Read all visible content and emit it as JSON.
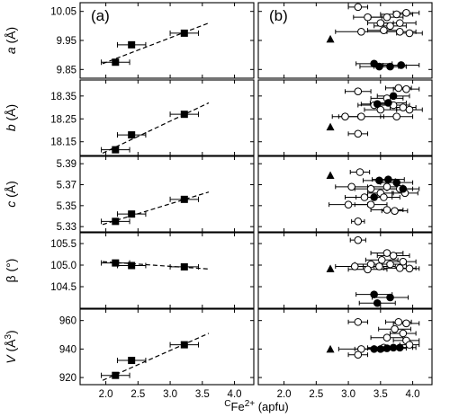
{
  "chart_data": {
    "type": "scatter",
    "panel_labels": [
      "(a)",
      "(b)"
    ],
    "xlabel": {
      "sup": "C",
      "main": "Fe",
      "charge": "2+",
      "unit": " (apfu)"
    },
    "xlim": [
      1.6,
      4.3
    ],
    "xticks": [
      2.0,
      2.5,
      3.0,
      3.5,
      4.0
    ],
    "xtick_labels": [
      "2.0",
      "2.5",
      "3.0",
      "3.5",
      "4.0"
    ],
    "rows": [
      {
        "key": "a",
        "ylabel": {
          "main": "a",
          "unit": " (Å)",
          "italic": true
        },
        "ylim": [
          9.82,
          10.08
        ],
        "yticks": [
          9.85,
          9.95,
          10.05
        ],
        "ytick_labels": [
          "9.85",
          "9.95",
          "10.05"
        ],
        "series_a": [
          {
            "x": 2.15,
            "y": 9.875,
            "xerr": 0.22
          },
          {
            "x": 2.4,
            "y": 9.935,
            "xerr": 0.22
          },
          {
            "x": 3.22,
            "y": 9.975,
            "xerr": 0.22
          }
        ],
        "trend_a": [
          [
            1.95,
            9.87
          ],
          [
            3.6,
            10.01
          ]
        ],
        "open_b": [
          {
            "x": 3.15,
            "y": 10.065,
            "xerr": 0.15
          },
          {
            "x": 3.3,
            "y": 10.03,
            "xerr": 0.22
          },
          {
            "x": 3.6,
            "y": 10.03,
            "xerr": 0.25
          },
          {
            "x": 3.75,
            "y": 10.04,
            "xerr": 0.25
          },
          {
            "x": 3.9,
            "y": 10.045,
            "xerr": 0.2
          },
          {
            "x": 3.8,
            "y": 10.01,
            "xerr": 0.25
          },
          {
            "x": 3.65,
            "y": 10.0,
            "xerr": 0.25
          },
          {
            "x": 3.5,
            "y": 10.01,
            "xerr": 0.2
          },
          {
            "x": 3.2,
            "y": 9.98,
            "xerr": 0.4
          },
          {
            "x": 3.55,
            "y": 9.985,
            "xerr": 0.25
          },
          {
            "x": 3.8,
            "y": 9.98,
            "xerr": 0.25
          },
          {
            "x": 3.95,
            "y": 9.975,
            "xerr": 0.2
          }
        ],
        "filled_b": [
          {
            "x": 3.4,
            "y": 9.87,
            "xerr": 0.28
          },
          {
            "x": 3.48,
            "y": 9.86,
            "xerr": 0.3
          },
          {
            "x": 3.65,
            "y": 9.86,
            "xerr": 0.25
          },
          {
            "x": 3.82,
            "y": 9.865,
            "xerr": 0.28
          }
        ],
        "triangle_b": [
          {
            "x": 2.72,
            "y": 9.955
          }
        ]
      },
      {
        "key": "b",
        "ylabel": {
          "main": "b",
          "unit": " (Å)",
          "italic": true
        },
        "ylim": [
          18.09,
          18.42
        ],
        "yticks": [
          18.15,
          18.25,
          18.35
        ],
        "ytick_labels": [
          "18.15",
          "18.25",
          "18.35"
        ],
        "series_a": [
          {
            "x": 2.15,
            "y": 18.115,
            "xerr": 0.22
          },
          {
            "x": 2.4,
            "y": 18.18,
            "xerr": 0.22
          },
          {
            "x": 3.22,
            "y": 18.27,
            "xerr": 0.22
          }
        ],
        "trend_a": [
          [
            1.95,
            18.1
          ],
          [
            3.6,
            18.32
          ]
        ],
        "open_b": [
          {
            "x": 3.15,
            "y": 18.37,
            "xerr": 0.2
          },
          {
            "x": 3.78,
            "y": 18.385,
            "xerr": 0.2
          },
          {
            "x": 3.9,
            "y": 18.38,
            "xerr": 0.2
          },
          {
            "x": 3.6,
            "y": 18.34,
            "xerr": 0.25
          },
          {
            "x": 3.4,
            "y": 18.31,
            "xerr": 0.25
          },
          {
            "x": 3.7,
            "y": 18.31,
            "xerr": 0.25
          },
          {
            "x": 3.85,
            "y": 18.3,
            "xerr": 0.2
          },
          {
            "x": 3.5,
            "y": 18.29,
            "xerr": 0.25
          },
          {
            "x": 3.95,
            "y": 18.29,
            "xerr": 0.2
          },
          {
            "x": 2.95,
            "y": 18.26,
            "xerr": 0.2
          },
          {
            "x": 3.2,
            "y": 18.26,
            "xerr": 0.35
          },
          {
            "x": 3.75,
            "y": 18.26,
            "xerr": 0.25
          },
          {
            "x": 3.15,
            "y": 18.185,
            "xerr": 0.15
          }
        ],
        "filled_b": [
          {
            "x": 3.45,
            "y": 18.315,
            "xerr": 0.25
          },
          {
            "x": 3.7,
            "y": 18.35,
            "xerr": 0.25
          },
          {
            "x": 3.62,
            "y": 18.32,
            "xerr": 0.28
          }
        ],
        "triangle_b": [
          {
            "x": 2.72,
            "y": 18.215
          }
        ]
      },
      {
        "key": "c",
        "ylabel": {
          "main": "c",
          "unit": " (Å)",
          "italic": true
        },
        "ylim": [
          5.325,
          5.397
        ],
        "yticks": [
          5.33,
          5.35,
          5.37,
          5.39
        ],
        "ytick_labels": [
          "5.33",
          "5.35",
          "5.37",
          "5.39"
        ],
        "series_a": [
          {
            "x": 2.15,
            "y": 5.335,
            "xerr": 0.22
          },
          {
            "x": 2.4,
            "y": 5.342,
            "xerr": 0.22
          },
          {
            "x": 3.22,
            "y": 5.356,
            "xerr": 0.22
          }
        ],
        "trend_a": [
          [
            1.95,
            5.332
          ],
          [
            3.6,
            5.363
          ]
        ],
        "open_b": [
          {
            "x": 3.18,
            "y": 5.382,
            "xerr": 0.15
          },
          {
            "x": 3.05,
            "y": 5.368,
            "xerr": 0.25
          },
          {
            "x": 3.35,
            "y": 5.366,
            "xerr": 0.25
          },
          {
            "x": 3.6,
            "y": 5.368,
            "xerr": 0.25
          },
          {
            "x": 3.8,
            "y": 5.366,
            "xerr": 0.2
          },
          {
            "x": 3.5,
            "y": 5.362,
            "xerr": 0.2
          },
          {
            "x": 3.88,
            "y": 5.362,
            "xerr": 0.2
          },
          {
            "x": 3.25,
            "y": 5.358,
            "xerr": 0.3
          },
          {
            "x": 3.55,
            "y": 5.358,
            "xerr": 0.25
          },
          {
            "x": 3.0,
            "y": 5.351,
            "xerr": 0.3
          },
          {
            "x": 3.35,
            "y": 5.351,
            "xerr": 0.25
          },
          {
            "x": 3.6,
            "y": 5.346,
            "xerr": 0.25
          },
          {
            "x": 3.72,
            "y": 5.345,
            "xerr": 0.2
          },
          {
            "x": 3.15,
            "y": 5.335,
            "xerr": 0.1
          }
        ],
        "filled_b": [
          {
            "x": 3.48,
            "y": 5.374,
            "xerr": 0.25
          },
          {
            "x": 3.62,
            "y": 5.375,
            "xerr": 0.25
          },
          {
            "x": 3.75,
            "y": 5.372,
            "xerr": 0.25
          },
          {
            "x": 3.85,
            "y": 5.366,
            "xerr": 0.25
          },
          {
            "x": 3.4,
            "y": 5.358,
            "xerr": 0.28
          }
        ],
        "triangle_b": [
          {
            "x": 2.72,
            "y": 5.379
          }
        ]
      },
      {
        "key": "beta",
        "ylabel": {
          "main": "β",
          "unit": " (°)",
          "italic": false
        },
        "ylim": [
          104.0,
          105.75
        ],
        "yticks": [
          104.5,
          105.0,
          105.5
        ],
        "ytick_labels": [
          "104.5",
          "105.0",
          "105.5"
        ],
        "series_a": [
          {
            "x": 2.15,
            "y": 105.05,
            "xerr": 0.22
          },
          {
            "x": 2.4,
            "y": 104.99,
            "xerr": 0.22
          },
          {
            "x": 3.22,
            "y": 104.96,
            "xerr": 0.22
          }
        ],
        "trend_a": [
          [
            1.95,
            105.08
          ],
          [
            3.6,
            104.91
          ]
        ],
        "open_b": [
          {
            "x": 3.15,
            "y": 105.58,
            "xerr": 0.12
          },
          {
            "x": 3.6,
            "y": 105.28,
            "xerr": 0.25
          },
          {
            "x": 3.7,
            "y": 105.22,
            "xerr": 0.25
          },
          {
            "x": 3.52,
            "y": 105.12,
            "xerr": 0.25
          },
          {
            "x": 3.85,
            "y": 105.08,
            "xerr": 0.2
          },
          {
            "x": 3.35,
            "y": 105.02,
            "xerr": 0.25
          },
          {
            "x": 3.65,
            "y": 105.02,
            "xerr": 0.25
          },
          {
            "x": 3.1,
            "y": 104.97,
            "xerr": 0.3
          },
          {
            "x": 3.48,
            "y": 104.97,
            "xerr": 0.25
          },
          {
            "x": 3.8,
            "y": 104.93,
            "xerr": 0.25
          },
          {
            "x": 3.95,
            "y": 104.92,
            "xerr": 0.15
          },
          {
            "x": 3.3,
            "y": 104.9,
            "xerr": 0.3
          }
        ],
        "filled_b": [
          {
            "x": 3.4,
            "y": 104.32,
            "xerr": 0.28
          },
          {
            "x": 3.65,
            "y": 104.25,
            "xerr": 0.28
          },
          {
            "x": 3.45,
            "y": 104.12,
            "xerr": 0.28
          }
        ],
        "triangle_b": [
          {
            "x": 2.72,
            "y": 104.92
          }
        ]
      },
      {
        "key": "V",
        "ylabel": {
          "main": "V",
          "unit": " (Å",
          "sup": "3",
          "tail": ")",
          "italic": true
        },
        "ylim": [
          915,
          968
        ],
        "yticks": [
          920,
          940,
          960
        ],
        "ytick_labels": [
          "920",
          "940",
          "960"
        ],
        "series_a": [
          {
            "x": 2.15,
            "y": 921.5,
            "xerr": 0.22
          },
          {
            "x": 2.4,
            "y": 932.0,
            "xerr": 0.22
          },
          {
            "x": 3.22,
            "y": 943.0,
            "xerr": 0.22
          }
        ],
        "trend_a": [
          [
            1.95,
            918.0
          ],
          [
            3.6,
            951.0
          ]
        ],
        "open_b": [
          {
            "x": 3.15,
            "y": 959.0,
            "xerr": 0.15
          },
          {
            "x": 3.78,
            "y": 959.0,
            "xerr": 0.2
          },
          {
            "x": 3.9,
            "y": 958.0,
            "xerr": 0.2
          },
          {
            "x": 3.72,
            "y": 954.0,
            "xerr": 0.25
          },
          {
            "x": 3.85,
            "y": 951.0,
            "xerr": 0.2
          },
          {
            "x": 3.6,
            "y": 948.0,
            "xerr": 0.25
          },
          {
            "x": 3.9,
            "y": 946.0,
            "xerr": 0.2
          },
          {
            "x": 3.95,
            "y": 943.0,
            "xerr": 0.15
          },
          {
            "x": 3.2,
            "y": 940.0,
            "xerr": 0.35
          },
          {
            "x": 3.55,
            "y": 941.0,
            "xerr": 0.25
          },
          {
            "x": 3.15,
            "y": 936.0,
            "xerr": 0.15
          }
        ],
        "filled_b": [
          {
            "x": 3.4,
            "y": 940.0,
            "xerr": 0.3
          },
          {
            "x": 3.5,
            "y": 940.0,
            "xerr": 0.3
          },
          {
            "x": 3.6,
            "y": 940.5,
            "xerr": 0.3
          },
          {
            "x": 3.7,
            "y": 941.0,
            "xerr": 0.3
          },
          {
            "x": 3.8,
            "y": 941.0,
            "xerr": 0.25
          }
        ],
        "triangle_b": [
          {
            "x": 2.72,
            "y": 940.0
          }
        ]
      }
    ]
  }
}
